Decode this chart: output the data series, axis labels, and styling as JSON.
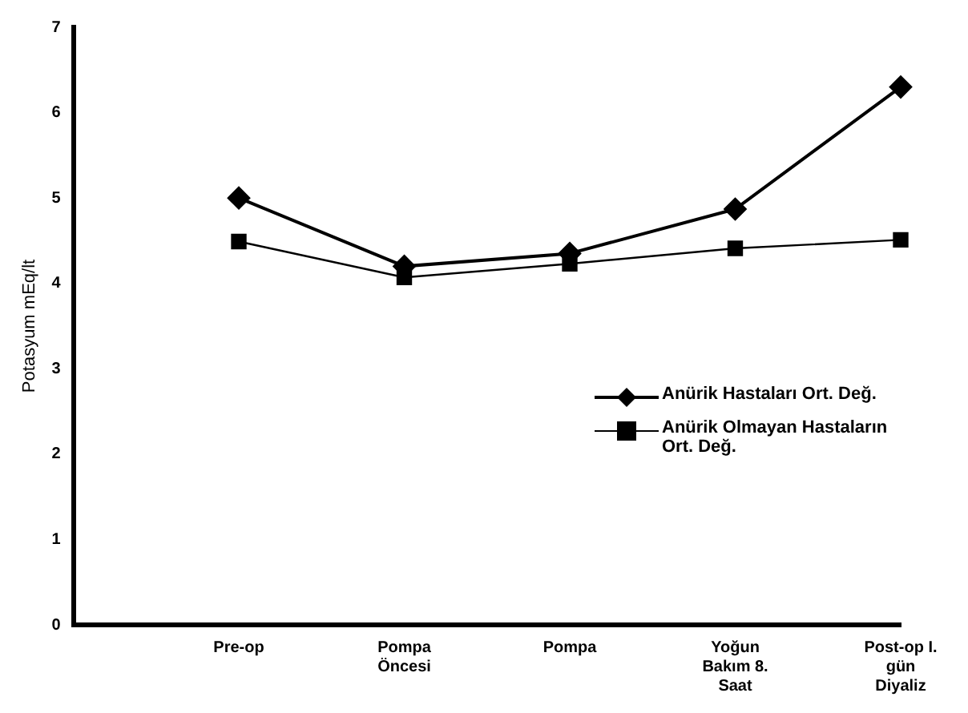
{
  "chart_data": {
    "type": "line",
    "ylabel": "Potasyum mEq/lt",
    "categories": [
      "Pre-op",
      "Pompa Öncesi",
      "Pompa",
      "Yoğun Bakım 8. Saat",
      "Post-op I. gün Diyaliz"
    ],
    "ylim": [
      0,
      7
    ],
    "yticks": [
      0,
      1,
      2,
      3,
      4,
      5,
      6,
      7
    ],
    "grid": false,
    "legend": "right",
    "series": [
      {
        "name": "Anürik Hastaları Ort. Değ.",
        "color": "#000000",
        "marker": "diamond",
        "values": [
          5.0,
          4.2,
          4.35,
          4.87,
          6.3
        ]
      },
      {
        "name": "Anürik Olmayan Hastaların Ort. Değ.",
        "color": "#000000",
        "marker": "square",
        "values": [
          4.49,
          4.07,
          4.23,
          4.41,
          4.51
        ]
      }
    ]
  }
}
